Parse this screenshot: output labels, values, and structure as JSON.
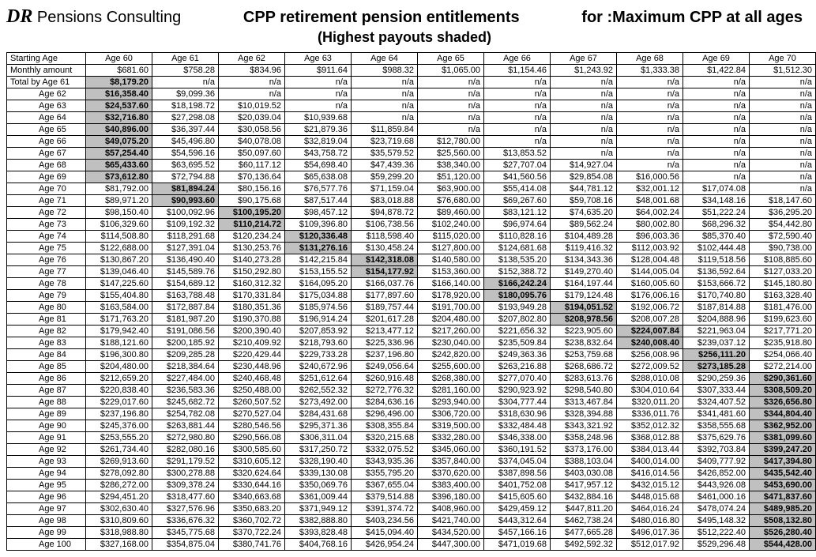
{
  "brand_script": "DR",
  "brand_rest": " Pensions Consulting",
  "title_main": "CPP retirement pension entitlements",
  "title_for": "for :Maximum CPP at all ages",
  "subtitle": "(Highest payouts shaded)",
  "headers": [
    "Starting Age",
    "Age 60",
    "Age 61",
    "Age 62",
    "Age 63",
    "Age 64",
    "Age 65",
    "Age 66",
    "Age 67",
    "Age 68",
    "Age 69",
    "Age 70"
  ],
  "monthly_label": "Monthly amount",
  "monthly": [
    "$681.60",
    "$758.28",
    "$834.96",
    "$911.64",
    "$988.32",
    "$1,065.00",
    "$1,154.46",
    "$1,243.92",
    "$1,333.38",
    "$1,422.84",
    "$1,512.30"
  ],
  "first_row_label": "Total by  Age 61",
  "rows": [
    {
      "label": "Age 61",
      "cells": [
        "$8,179.20",
        "n/a",
        "n/a",
        "n/a",
        "n/a",
        "n/a",
        "n/a",
        "n/a",
        "n/a",
        "n/a",
        "n/a"
      ],
      "hi": 0
    },
    {
      "label": "Age 62",
      "cells": [
        "$16,358.40",
        "$9,099.36",
        "n/a",
        "n/a",
        "n/a",
        "n/a",
        "n/a",
        "n/a",
        "n/a",
        "n/a",
        "n/a"
      ],
      "hi": 0
    },
    {
      "label": "Age 63",
      "cells": [
        "$24,537.60",
        "$18,198.72",
        "$10,019.52",
        "n/a",
        "n/a",
        "n/a",
        "n/a",
        "n/a",
        "n/a",
        "n/a",
        "n/a"
      ],
      "hi": 0
    },
    {
      "label": "Age 64",
      "cells": [
        "$32,716.80",
        "$27,298.08",
        "$20,039.04",
        "$10,939.68",
        "n/a",
        "n/a",
        "n/a",
        "n/a",
        "n/a",
        "n/a",
        "n/a"
      ],
      "hi": 0
    },
    {
      "label": "Age 65",
      "cells": [
        "$40,896.00",
        "$36,397.44",
        "$30,058.56",
        "$21,879.36",
        "$11,859.84",
        "n/a",
        "n/a",
        "n/a",
        "n/a",
        "n/a",
        "n/a"
      ],
      "hi": 0
    },
    {
      "label": "Age 66",
      "cells": [
        "$49,075.20",
        "$45,496.80",
        "$40,078.08",
        "$32,819.04",
        "$23,719.68",
        "$12,780.00",
        "n/a",
        "n/a",
        "n/a",
        "n/a",
        "n/a"
      ],
      "hi": 0
    },
    {
      "label": "Age 67",
      "cells": [
        "$57,254.40",
        "$54,596.16",
        "$50,097.60",
        "$43,758.72",
        "$35,579.52",
        "$25,560.00",
        "$13,853.52",
        "n/a",
        "n/a",
        "n/a",
        "n/a"
      ],
      "hi": 0
    },
    {
      "label": "Age 68",
      "cells": [
        "$65,433.60",
        "$63,695.52",
        "$60,117.12",
        "$54,698.40",
        "$47,439.36",
        "$38,340.00",
        "$27,707.04",
        "$14,927.04",
        "n/a",
        "n/a",
        "n/a"
      ],
      "hi": 0
    },
    {
      "label": "Age 69",
      "cells": [
        "$73,612.80",
        "$72,794.88",
        "$70,136.64",
        "$65,638.08",
        "$59,299.20",
        "$51,120.00",
        "$41,560.56",
        "$29,854.08",
        "$16,000.56",
        "n/a",
        "n/a"
      ],
      "hi": 0
    },
    {
      "label": "Age 70",
      "cells": [
        "$81,792.00",
        "$81,894.24",
        "$80,156.16",
        "$76,577.76",
        "$71,159.04",
        "$63,900.00",
        "$55,414.08",
        "$44,781.12",
        "$32,001.12",
        "$17,074.08",
        "n/a"
      ],
      "hi": 1
    },
    {
      "label": "Age 71",
      "cells": [
        "$89,971.20",
        "$90,993.60",
        "$90,175.68",
        "$87,517.44",
        "$83,018.88",
        "$76,680.00",
        "$69,267.60",
        "$59,708.16",
        "$48,001.68",
        "$34,148.16",
        "$18,147.60"
      ],
      "hi": 1
    },
    {
      "label": "Age 72",
      "cells": [
        "$98,150.40",
        "$100,092.96",
        "$100,195.20",
        "$98,457.12",
        "$94,878.72",
        "$89,460.00",
        "$83,121.12",
        "$74,635.20",
        "$64,002.24",
        "$51,222.24",
        "$36,295.20"
      ],
      "hi": 2
    },
    {
      "label": "Age 73",
      "cells": [
        "$106,329.60",
        "$109,192.32",
        "$110,214.72",
        "$109,396.80",
        "$106,738.56",
        "$102,240.00",
        "$96,974.64",
        "$89,562.24",
        "$80,002.80",
        "$68,296.32",
        "$54,442.80"
      ],
      "hi": 2
    },
    {
      "label": "Age 74",
      "cells": [
        "$114,508.80",
        "$118,291.68",
        "$120,234.24",
        "$120,336.48",
        "$118,598.40",
        "$115,020.00",
        "$110,828.16",
        "$104,489.28",
        "$96,003.36",
        "$85,370.40",
        "$72,590.40"
      ],
      "hi": 3
    },
    {
      "label": "Age 75",
      "cells": [
        "$122,688.00",
        "$127,391.04",
        "$130,253.76",
        "$131,276.16",
        "$130,458.24",
        "$127,800.00",
        "$124,681.68",
        "$119,416.32",
        "$112,003.92",
        "$102,444.48",
        "$90,738.00"
      ],
      "hi": 3
    },
    {
      "label": "Age 76",
      "cells": [
        "$130,867.20",
        "$136,490.40",
        "$140,273.28",
        "$142,215.84",
        "$142,318.08",
        "$140,580.00",
        "$138,535.20",
        "$134,343.36",
        "$128,004.48",
        "$119,518.56",
        "$108,885.60"
      ],
      "hi": 4
    },
    {
      "label": "Age 77",
      "cells": [
        "$139,046.40",
        "$145,589.76",
        "$150,292.80",
        "$153,155.52",
        "$154,177.92",
        "$153,360.00",
        "$152,388.72",
        "$149,270.40",
        "$144,005.04",
        "$136,592.64",
        "$127,033.20"
      ],
      "hi": 4
    },
    {
      "label": "Age 78",
      "cells": [
        "$147,225.60",
        "$154,689.12",
        "$160,312.32",
        "$164,095.20",
        "$166,037.76",
        "$166,140.00",
        "$166,242.24",
        "$164,197.44",
        "$160,005.60",
        "$153,666.72",
        "$145,180.80"
      ],
      "hi": 6
    },
    {
      "label": "Age 79",
      "cells": [
        "$155,404.80",
        "$163,788.48",
        "$170,331.84",
        "$175,034.88",
        "$177,897.60",
        "$178,920.00",
        "$180,095.76",
        "$179,124.48",
        "$176,006.16",
        "$170,740.80",
        "$163,328.40"
      ],
      "hi": 6
    },
    {
      "label": "Age 80",
      "cells": [
        "$163,584.00",
        "$172,887.84",
        "$180,351.36",
        "$185,974.56",
        "$189,757.44",
        "$191,700.00",
        "$193,949.28",
        "$194,051.52",
        "$192,006.72",
        "$187,814.88",
        "$181,476.00"
      ],
      "hi": 7
    },
    {
      "label": "Age 81",
      "cells": [
        "$171,763.20",
        "$181,987.20",
        "$190,370.88",
        "$196,914.24",
        "$201,617.28",
        "$204,480.00",
        "$207,802.80",
        "$208,978.56",
        "$208,007.28",
        "$204,888.96",
        "$199,623.60"
      ],
      "hi": 7
    },
    {
      "label": "Age 82",
      "cells": [
        "$179,942.40",
        "$191,086.56",
        "$200,390.40",
        "$207,853.92",
        "$213,477.12",
        "$217,260.00",
        "$221,656.32",
        "$223,905.60",
        "$224,007.84",
        "$221,963.04",
        "$217,771.20"
      ],
      "hi": 8
    },
    {
      "label": "Age 83",
      "cells": [
        "$188,121.60",
        "$200,185.92",
        "$210,409.92",
        "$218,793.60",
        "$225,336.96",
        "$230,040.00",
        "$235,509.84",
        "$238,832.64",
        "$240,008.40",
        "$239,037.12",
        "$235,918.80"
      ],
      "hi": 8
    },
    {
      "label": "Age 84",
      "cells": [
        "$196,300.80",
        "$209,285.28",
        "$220,429.44",
        "$229,733.28",
        "$237,196.80",
        "$242,820.00",
        "$249,363.36",
        "$253,759.68",
        "$256,008.96",
        "$256,111.20",
        "$254,066.40"
      ],
      "hi": 9
    },
    {
      "label": "Age 85",
      "cells": [
        "$204,480.00",
        "$218,384.64",
        "$230,448.96",
        "$240,672.96",
        "$249,056.64",
        "$255,600.00",
        "$263,216.88",
        "$268,686.72",
        "$272,009.52",
        "$273,185.28",
        "$272,214.00"
      ],
      "hi": 9
    },
    {
      "label": "Age 86",
      "cells": [
        "$212,659.20",
        "$227,484.00",
        "$240,468.48",
        "$251,612.64",
        "$260,916.48",
        "$268,380.00",
        "$277,070.40",
        "$283,613.76",
        "$288,010.08",
        "$290,259.36",
        "$290,361.60"
      ],
      "hi": 10
    },
    {
      "label": "Age 87",
      "cells": [
        "$220,838.40",
        "$236,583.36",
        "$250,488.00",
        "$262,552.32",
        "$272,776.32",
        "$281,160.00",
        "$290,923.92",
        "$298,540.80",
        "$304,010.64",
        "$307,333.44",
        "$308,509.20"
      ],
      "hi": 10
    },
    {
      "label": "Age 88",
      "cells": [
        "$229,017.60",
        "$245,682.72",
        "$260,507.52",
        "$273,492.00",
        "$284,636.16",
        "$293,940.00",
        "$304,777.44",
        "$313,467.84",
        "$320,011.20",
        "$324,407.52",
        "$326,656.80"
      ],
      "hi": 10
    },
    {
      "label": "Age 89",
      "cells": [
        "$237,196.80",
        "$254,782.08",
        "$270,527.04",
        "$284,431.68",
        "$296,496.00",
        "$306,720.00",
        "$318,630.96",
        "$328,394.88",
        "$336,011.76",
        "$341,481.60",
        "$344,804.40"
      ],
      "hi": 10
    },
    {
      "label": "Age 90",
      "cells": [
        "$245,376.00",
        "$263,881.44",
        "$280,546.56",
        "$295,371.36",
        "$308,355.84",
        "$319,500.00",
        "$332,484.48",
        "$343,321.92",
        "$352,012.32",
        "$358,555.68",
        "$362,952.00"
      ],
      "hi": 10
    },
    {
      "label": "Age 91",
      "cells": [
        "$253,555.20",
        "$272,980.80",
        "$290,566.08",
        "$306,311.04",
        "$320,215.68",
        "$332,280.00",
        "$346,338.00",
        "$358,248.96",
        "$368,012.88",
        "$375,629.76",
        "$381,099.60"
      ],
      "hi": 10
    },
    {
      "label": "Age 92",
      "cells": [
        "$261,734.40",
        "$282,080.16",
        "$300,585.60",
        "$317,250.72",
        "$332,075.52",
        "$345,060.00",
        "$360,191.52",
        "$373,176.00",
        "$384,013.44",
        "$392,703.84",
        "$399,247.20"
      ],
      "hi": 10
    },
    {
      "label": "Age 93",
      "cells": [
        "$269,913.60",
        "$291,179.52",
        "$310,605.12",
        "$328,190.40",
        "$343,935.36",
        "$357,840.00",
        "$374,045.04",
        "$388,103.04",
        "$400,014.00",
        "$409,777.92",
        "$417,394.80"
      ],
      "hi": 10
    },
    {
      "label": "Age 94",
      "cells": [
        "$278,092.80",
        "$300,278.88",
        "$320,624.64",
        "$339,130.08",
        "$355,795.20",
        "$370,620.00",
        "$387,898.56",
        "$403,030.08",
        "$416,014.56",
        "$426,852.00",
        "$435,542.40"
      ],
      "hi": 10
    },
    {
      "label": "Age 95",
      "cells": [
        "$286,272.00",
        "$309,378.24",
        "$330,644.16",
        "$350,069.76",
        "$367,655.04",
        "$383,400.00",
        "$401,752.08",
        "$417,957.12",
        "$432,015.12",
        "$443,926.08",
        "$453,690.00"
      ],
      "hi": 10
    },
    {
      "label": "Age 96",
      "cells": [
        "$294,451.20",
        "$318,477.60",
        "$340,663.68",
        "$361,009.44",
        "$379,514.88",
        "$396,180.00",
        "$415,605.60",
        "$432,884.16",
        "$448,015.68",
        "$461,000.16",
        "$471,837.60"
      ],
      "hi": 10
    },
    {
      "label": "Age 97",
      "cells": [
        "$302,630.40",
        "$327,576.96",
        "$350,683.20",
        "$371,949.12",
        "$391,374.72",
        "$408,960.00",
        "$429,459.12",
        "$447,811.20",
        "$464,016.24",
        "$478,074.24",
        "$489,985.20"
      ],
      "hi": 10
    },
    {
      "label": "Age 98",
      "cells": [
        "$310,809.60",
        "$336,676.32",
        "$360,702.72",
        "$382,888.80",
        "$403,234.56",
        "$421,740.00",
        "$443,312.64",
        "$462,738.24",
        "$480,016.80",
        "$495,148.32",
        "$508,132.80"
      ],
      "hi": 10
    },
    {
      "label": "Age 99",
      "cells": [
        "$318,988.80",
        "$345,775.68",
        "$370,722.24",
        "$393,828.48",
        "$415,094.40",
        "$434,520.00",
        "$457,166.16",
        "$477,665.28",
        "$496,017.36",
        "$512,222.40",
        "$526,280.40"
      ],
      "hi": 10
    },
    {
      "label": "Age 100",
      "cells": [
        "$327,168.00",
        "$354,875.04",
        "$380,741.76",
        "$404,768.16",
        "$426,954.24",
        "$447,300.00",
        "$471,019.68",
        "$492,592.32",
        "$512,017.92",
        "$529,296.48",
        "$544,428.00"
      ],
      "hi": 10
    }
  ]
}
